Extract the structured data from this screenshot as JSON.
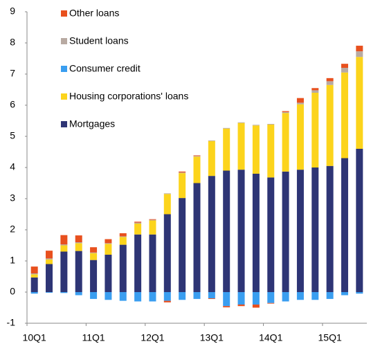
{
  "chart_data": {
    "type": "stacked_bar",
    "categories": [
      "10Q1",
      null,
      null,
      null,
      "11Q1",
      null,
      null,
      null,
      "12Q1",
      null,
      null,
      null,
      "13Q1",
      null,
      null,
      null,
      "14Q1",
      null,
      null,
      null,
      "15Q1",
      null,
      null
    ],
    "series": [
      {
        "name": "Mortgages",
        "color": "#2e3575",
        "values": [
          0.47,
          0.9,
          1.3,
          1.32,
          1.03,
          1.2,
          1.52,
          1.85,
          1.85,
          2.5,
          3.02,
          3.5,
          3.73,
          3.9,
          3.93,
          3.8,
          3.68,
          3.87,
          3.93,
          4.0,
          4.05,
          4.3,
          4.6
        ]
      },
      {
        "name": "Housing corporations' loans",
        "color": "#fcd41c",
        "values": [
          0.1,
          0.15,
          0.2,
          0.25,
          0.22,
          0.35,
          0.25,
          0.35,
          0.45,
          0.65,
          0.8,
          0.85,
          1.12,
          1.35,
          1.5,
          1.55,
          1.7,
          1.88,
          2.1,
          2.4,
          2.6,
          2.75,
          2.95
        ]
      },
      {
        "name": "Consumer credit",
        "color": "#3a9ef0",
        "values": [
          -0.05,
          -0.02,
          -0.03,
          -0.1,
          -0.22,
          -0.25,
          -0.28,
          -0.3,
          -0.3,
          -0.28,
          -0.25,
          -0.22,
          -0.2,
          -0.45,
          -0.4,
          -0.4,
          -0.35,
          -0.3,
          -0.25,
          -0.25,
          -0.22,
          -0.1,
          -0.05
        ]
      },
      {
        "name": "Student loans",
        "color": "#b8aaa2",
        "values": [
          0.03,
          0.03,
          0.03,
          0.03,
          0.02,
          0.02,
          0.02,
          0.03,
          0.02,
          0.02,
          0.02,
          0.02,
          0.02,
          0.02,
          0.02,
          0.02,
          0.02,
          0.03,
          0.05,
          0.08,
          0.12,
          0.15,
          0.18
        ]
      },
      {
        "name": "Other loans",
        "color": "#e8501e",
        "values": [
          0.22,
          0.25,
          0.3,
          0.22,
          0.17,
          0.13,
          0.1,
          0.03,
          0.02,
          -0.05,
          0.03,
          0.02,
          -0.02,
          -0.04,
          -0.05,
          -0.1,
          -0.02,
          0.03,
          0.15,
          0.07,
          0.1,
          0.13,
          0.18
        ]
      }
    ],
    "ylim": [
      -1,
      9
    ],
    "yticks": [
      -1,
      0,
      1,
      2,
      3,
      4,
      5,
      6,
      7,
      8,
      9
    ],
    "grid": false
  }
}
